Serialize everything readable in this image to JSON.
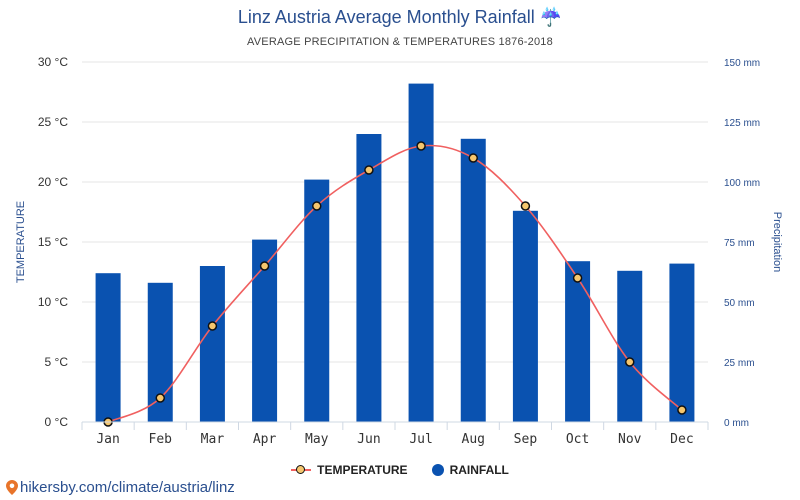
{
  "title": "Linz Austria Average Monthly Rainfall ☔",
  "subtitle": "AVERAGE PRECIPITATION & TEMPERATURES 1876-2018",
  "footer": {
    "url_text": "hikersby.com/climate/austria/linz",
    "icon": "location-pin-icon"
  },
  "colors": {
    "rainfall_bar": "#0a52b0",
    "temperature_line": "#f06060",
    "temperature_marker_fill": "#f5c66e",
    "title": "#2a4f8f"
  },
  "legend": {
    "temperature_label": "TEMPERATURE",
    "rainfall_label": "RAINFALL",
    "position": "bottom-center"
  },
  "chart_data": {
    "type": "bar",
    "categories": [
      "Jan",
      "Feb",
      "Mar",
      "Apr",
      "May",
      "Jun",
      "Jul",
      "Aug",
      "Sep",
      "Oct",
      "Nov",
      "Dec"
    ],
    "series": [
      {
        "name": "RAINFALL",
        "type": "bar",
        "axis": "right",
        "unit": "mm",
        "values": [
          62,
          58,
          65,
          76,
          101,
          120,
          141,
          118,
          88,
          67,
          63,
          66
        ]
      },
      {
        "name": "TEMPERATURE",
        "type": "line",
        "axis": "left",
        "unit": "°C",
        "values": [
          0,
          2,
          8,
          13,
          18,
          21,
          23,
          22,
          18,
          12,
          5,
          1
        ]
      }
    ],
    "left_axis": {
      "label": "TEMPERATURE",
      "range": [
        0,
        30
      ],
      "ticks": [
        "0 °C",
        "5 °C",
        "10 °C",
        "15 °C",
        "20 °C",
        "25 °C",
        "30 °C"
      ]
    },
    "right_axis": {
      "label": "Precipitation",
      "range": [
        0,
        150
      ],
      "ticks": [
        "0 mm",
        "25 mm",
        "50 mm",
        "75 mm",
        "100 mm",
        "125 mm",
        "150 mm"
      ]
    },
    "grid": true
  }
}
